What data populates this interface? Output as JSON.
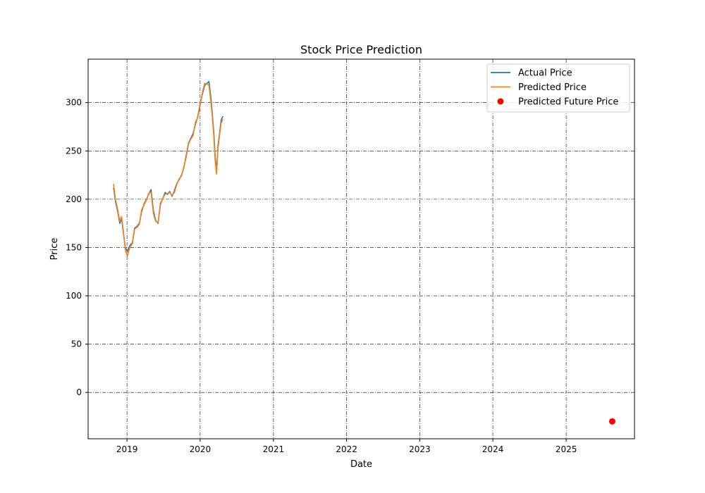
{
  "chart_data": {
    "type": "line",
    "title": "Stock Price Prediction",
    "xlabel": "Date",
    "ylabel": "Price",
    "xlim": [
      "2018-06-21",
      "2025-12-08"
    ],
    "ylim": [
      -48,
      345
    ],
    "x_ticks": [
      "2019-01-01",
      "2020-01-01",
      "2021-01-01",
      "2022-01-01",
      "2023-01-01",
      "2024-01-01",
      "2025-01-01"
    ],
    "x_tick_labels": [
      "2019",
      "2020",
      "2021",
      "2022",
      "2023",
      "2024",
      "2025"
    ],
    "y_ticks": [
      0,
      50,
      100,
      150,
      200,
      250,
      300
    ],
    "y_tick_labels": [
      "0",
      "50",
      "100",
      "150",
      "200",
      "250",
      "300"
    ],
    "grid": true,
    "legend_position": "top-right",
    "series": [
      {
        "name": "Actual Price",
        "kind": "line",
        "color": "#1f77b4",
        "x": [
          "2018-10-26",
          "2018-11-05",
          "2018-11-15",
          "2018-11-26",
          "2018-12-05",
          "2018-12-14",
          "2018-12-24",
          "2019-01-03",
          "2019-01-15",
          "2019-01-28",
          "2019-02-08",
          "2019-02-20",
          "2019-03-04",
          "2019-03-15",
          "2019-03-27",
          "2019-04-08",
          "2019-04-19",
          "2019-05-01",
          "2019-05-13",
          "2019-05-24",
          "2019-06-05",
          "2019-06-17",
          "2019-06-28",
          "2019-07-10",
          "2019-07-22",
          "2019-08-02",
          "2019-08-14",
          "2019-08-26",
          "2019-09-06",
          "2019-09-18",
          "2019-09-30",
          "2019-10-11",
          "2019-10-23",
          "2019-11-04",
          "2019-11-15",
          "2019-11-27",
          "2019-12-09",
          "2019-12-20",
          "2020-01-02",
          "2020-01-14",
          "2020-01-24",
          "2020-02-05",
          "2020-02-14",
          "2020-02-24",
          "2020-03-02",
          "2020-03-09",
          "2020-03-16",
          "2020-03-23",
          "2020-03-30",
          "2020-04-07",
          "2020-04-15",
          "2020-04-24"
        ],
        "y": [
          212,
          197,
          188,
          175,
          180,
          165,
          150,
          146,
          152,
          155,
          170,
          172,
          175,
          187,
          195,
          200,
          205,
          210,
          188,
          178,
          175,
          196,
          200,
          207,
          205,
          208,
          203,
          209,
          216,
          220,
          225,
          232,
          245,
          258,
          263,
          268,
          278,
          285,
          300,
          310,
          318,
          320,
          322,
          305,
          288,
          270,
          245,
          228,
          255,
          268,
          282,
          286
        ]
      },
      {
        "name": "Predicted Price",
        "kind": "line",
        "color": "#ff7f0e",
        "x": [
          "2018-10-26",
          "2018-11-05",
          "2018-11-15",
          "2018-11-26",
          "2018-12-05",
          "2018-12-14",
          "2018-12-24",
          "2019-01-03",
          "2019-01-15",
          "2019-01-28",
          "2019-02-08",
          "2019-02-20",
          "2019-03-04",
          "2019-03-15",
          "2019-03-27",
          "2019-04-08",
          "2019-04-19",
          "2019-05-01",
          "2019-05-13",
          "2019-05-24",
          "2019-06-05",
          "2019-06-17",
          "2019-06-28",
          "2019-07-10",
          "2019-07-22",
          "2019-08-02",
          "2019-08-14",
          "2019-08-26",
          "2019-09-06",
          "2019-09-18",
          "2019-09-30",
          "2019-10-11",
          "2019-10-23",
          "2019-11-04",
          "2019-11-15",
          "2019-11-27",
          "2019-12-09",
          "2019-12-20",
          "2020-01-02",
          "2020-01-14",
          "2020-01-24",
          "2020-02-05",
          "2020-02-14",
          "2020-02-24",
          "2020-03-02",
          "2020-03-09",
          "2020-03-16",
          "2020-03-23",
          "2020-03-30",
          "2020-04-07",
          "2020-04-15",
          "2020-04-24"
        ],
        "y": [
          216,
          199,
          190,
          177,
          182,
          167,
          147,
          141,
          150,
          154,
          169,
          171,
          174,
          189,
          194,
          199,
          206,
          207,
          185,
          177,
          176,
          194,
          201,
          205,
          206,
          207,
          204,
          207,
          215,
          221,
          224,
          233,
          243,
          257,
          262,
          266,
          280,
          284,
          298,
          312,
          320,
          319,
          318,
          300,
          285,
          266,
          240,
          226,
          252,
          266,
          279,
          283
        ]
      },
      {
        "name": "Predicted Future Price",
        "kind": "scatter",
        "color": "#ff0000",
        "x": [
          "2025-08-19"
        ],
        "y": [
          -30
        ]
      }
    ]
  }
}
